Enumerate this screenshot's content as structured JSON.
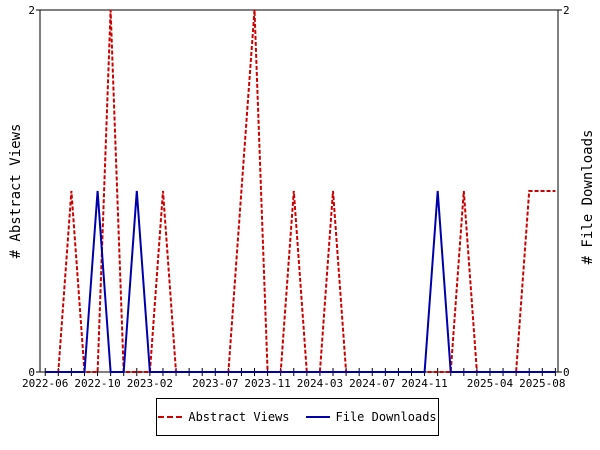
{
  "chart_data": {
    "type": "line",
    "x": [
      "2022-06",
      "2022-07",
      "2022-08",
      "2022-09",
      "2022-10",
      "2022-11",
      "2022-12",
      "2023-01",
      "2023-02",
      "2023-03",
      "2023-04",
      "2023-05",
      "2023-06",
      "2023-07",
      "2023-08",
      "2023-09",
      "2023-10",
      "2023-11",
      "2023-12",
      "2024-01",
      "2024-02",
      "2024-03",
      "2024-04",
      "2024-05",
      "2024-06",
      "2024-07",
      "2024-08",
      "2024-09",
      "2024-10",
      "2024-11",
      "2024-12",
      "2025-01",
      "2025-02",
      "2025-03",
      "2025-04",
      "2025-05",
      "2025-06",
      "2025-07",
      "2025-08",
      "2025-09"
    ],
    "x_tick_labels": [
      "2022-06",
      "2022-10",
      "2023-02",
      "2023-07",
      "2023-11",
      "2024-03",
      "2024-07",
      "2024-11",
      "2025-04",
      "2025-08"
    ],
    "series": [
      {
        "name": "Abstract Views",
        "axis": "left",
        "color": "#cc0000",
        "style": "dashed",
        "values": [
          0,
          0,
          1,
          0,
          0,
          2,
          0,
          0,
          0,
          1,
          0,
          0,
          0,
          0,
          0,
          1,
          2,
          0,
          0,
          1,
          0,
          0,
          1,
          0,
          0,
          0,
          0,
          0,
          0,
          0,
          0,
          0,
          1,
          0,
          0,
          0,
          0,
          1,
          1,
          1
        ]
      },
      {
        "name": "File Downloads",
        "axis": "right",
        "color": "#0000aa",
        "style": "solid",
        "values": [
          0,
          0,
          0,
          0,
          1,
          0,
          0,
          1,
          0,
          0,
          0,
          0,
          0,
          0,
          0,
          0,
          0,
          0,
          0,
          0,
          0,
          0,
          0,
          0,
          0,
          0,
          0,
          0,
          0,
          0,
          1,
          0,
          0,
          0,
          0,
          0,
          0,
          0,
          0,
          0
        ]
      }
    ],
    "ylabel_left": "# Abstract Views",
    "ylabel_right": "# File Downloads",
    "ylim_left": [
      0,
      2
    ],
    "ylim_right": [
      0,
      2
    ],
    "y_ticks_left": [
      "0",
      "2"
    ],
    "y_ticks_right": [
      "0",
      "2"
    ],
    "grid": false,
    "legend_position": "bottom"
  },
  "legend": {
    "items": [
      {
        "label": "Abstract Views"
      },
      {
        "label": "File Downloads"
      }
    ]
  }
}
